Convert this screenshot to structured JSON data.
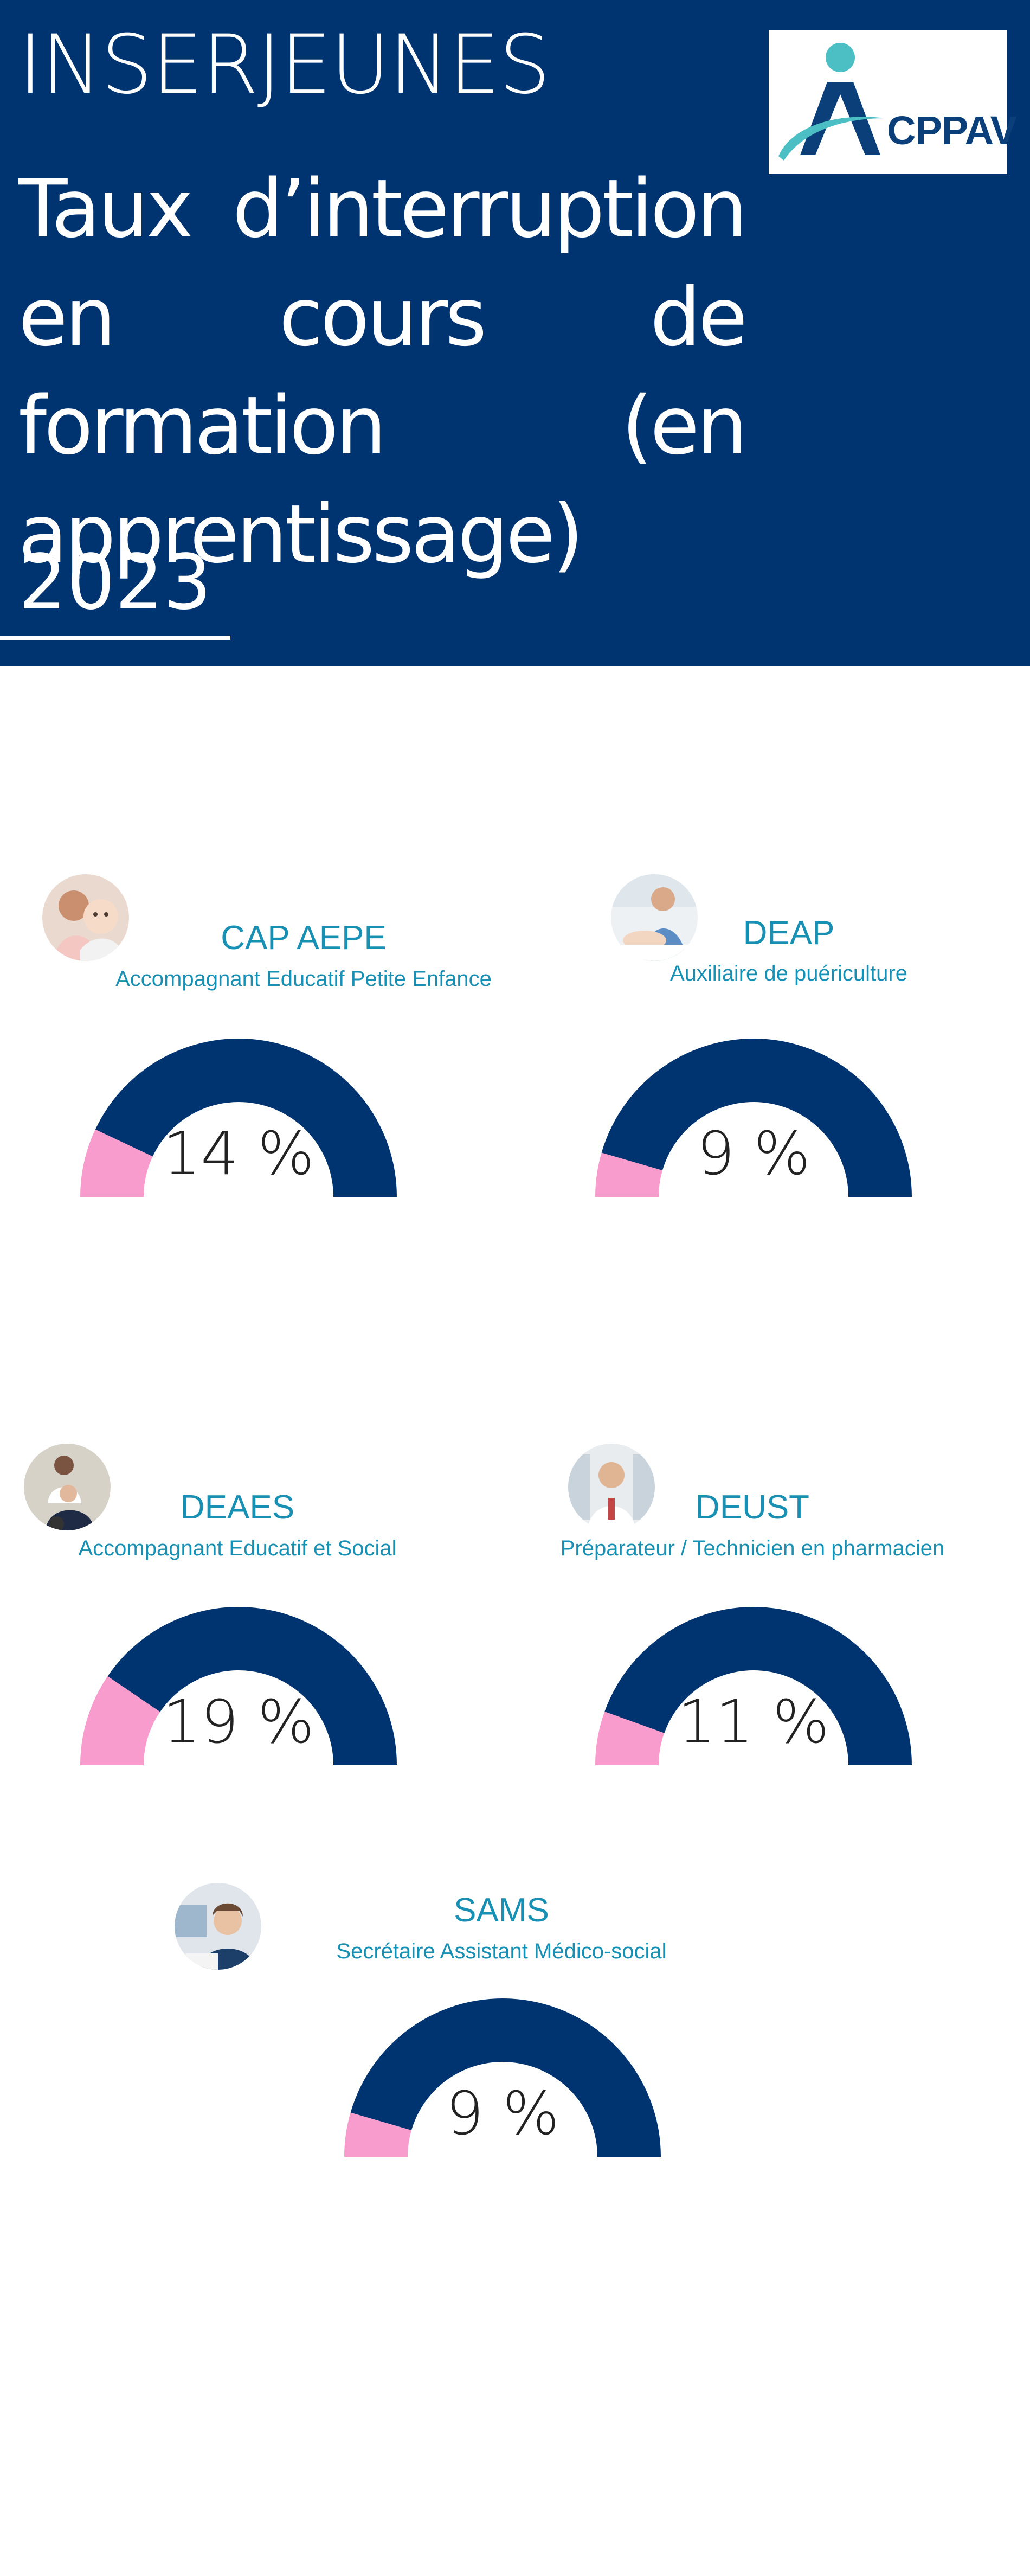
{
  "header": {
    "brand": "INSERJEUNES",
    "title": "Taux d’interruption en cours de formation (en apprentissage)",
    "year": "2023",
    "logo_text": "CPPAV"
  },
  "colors": {
    "header_bg": "#003470",
    "gauge_main": "#003470",
    "gauge_accent": "#f79ccc",
    "title_text": "#1790b4"
  },
  "chart_data": [
    {
      "type": "gauge",
      "title": "CAP AEPE",
      "subtitle": "Accompagnant Educatif Petite Enfance",
      "value": 14,
      "label": "14 %",
      "range": [
        0,
        100
      ],
      "icon": "childcare-photo"
    },
    {
      "type": "gauge",
      "title": "DEAP",
      "subtitle": "Auxiliaire de puériculture",
      "value": 9,
      "label": "9 %",
      "range": [
        0,
        100
      ],
      "icon": "pediatric-nurse-photo"
    },
    {
      "type": "gauge",
      "title": "DEAES",
      "subtitle": "Accompagnant Educatif et Social",
      "value": 19,
      "label": "19 %",
      "range": [
        0,
        100
      ],
      "icon": "social-caregiver-photo"
    },
    {
      "type": "gauge",
      "title": "DEUST",
      "subtitle": "Préparateur / Technicien en pharmacien",
      "value": 11,
      "label": "11 %",
      "range": [
        0,
        100
      ],
      "icon": "pharmacist-photo"
    },
    {
      "type": "gauge",
      "title": "SAMS",
      "subtitle": "Secrétaire Assistant Médico-social",
      "value": 9,
      "label": "9 %",
      "range": [
        0,
        100
      ],
      "icon": "medical-secretary-photo"
    }
  ]
}
